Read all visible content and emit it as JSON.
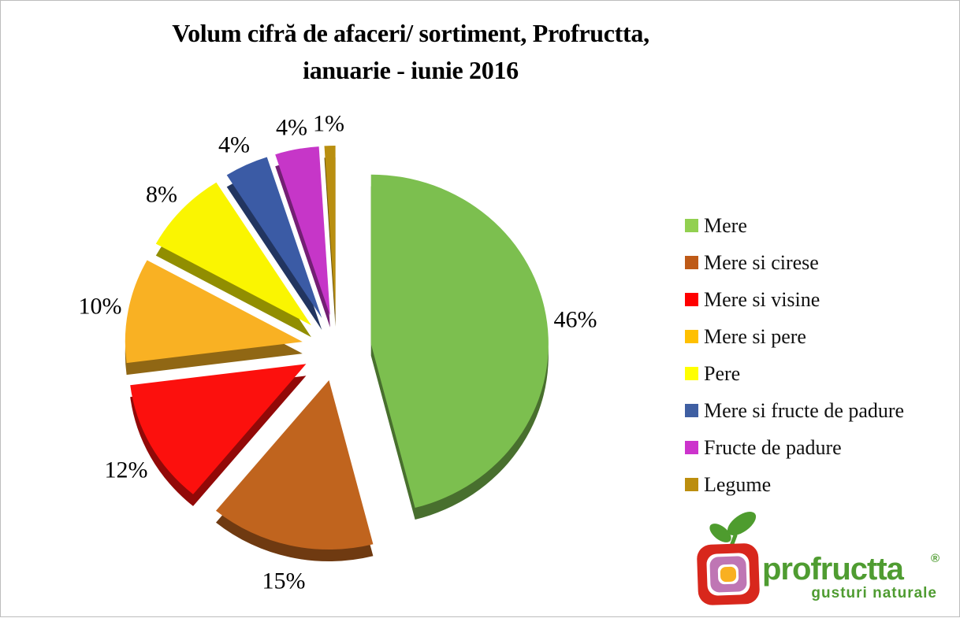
{
  "title": {
    "line1": "Volum cifră de afaceri/ sortiment, Profructta,",
    "line2": "ianuarie - iunie 2016"
  },
  "chart_data": {
    "type": "pie",
    "title": "Volum cifră de afaceri/ sortiment, Profructta, ianuarie - iunie 2016",
    "effect": "3d-exploded",
    "start_angle_deg": 0,
    "direction": "clockwise",
    "unit": "%",
    "legend_position": "right",
    "series": [
      {
        "label": "Mere",
        "value": 46,
        "pie_color": "#7cbf4f",
        "legend_color": "#92d050"
      },
      {
        "label": "Mere si cirese",
        "value": 15,
        "pie_color": "#c0641e",
        "legend_color": "#be5a17"
      },
      {
        "label": "Mere si visine",
        "value": 12,
        "pie_color": "#fc100d",
        "legend_color": "#ff0000"
      },
      {
        "label": "Mere si pere",
        "value": 10,
        "pie_color": "#f9b123",
        "legend_color": "#ffc000"
      },
      {
        "label": "Pere",
        "value": 8,
        "pie_color": "#faf501",
        "legend_color": "#ffff00"
      },
      {
        "label": "Mere si fructe de padure",
        "value": 4,
        "pie_color": "#3b5ba5",
        "legend_color": "#3f5fa2"
      },
      {
        "label": "Fructe de padure",
        "value": 4,
        "pie_color": "#c636c8",
        "legend_color": "#cc33cc"
      },
      {
        "label": "Legume",
        "value": 1,
        "pie_color": "#b98f10",
        "legend_color": "#bc8e0e"
      }
    ],
    "data_labels": [
      "46%",
      "15%",
      "12%",
      "10%",
      "8%",
      "4%",
      "4%",
      "1%"
    ]
  },
  "logo": {
    "brand": "profructta",
    "registered": "®",
    "tagline": "gusturi naturale",
    "colors": {
      "text_green": "#4f9c31",
      "leaf_green": "#4e9c2e",
      "square_red": "#d8271c",
      "square_purple": "#bf76b4",
      "square_yellow": "#f9b021"
    }
  }
}
